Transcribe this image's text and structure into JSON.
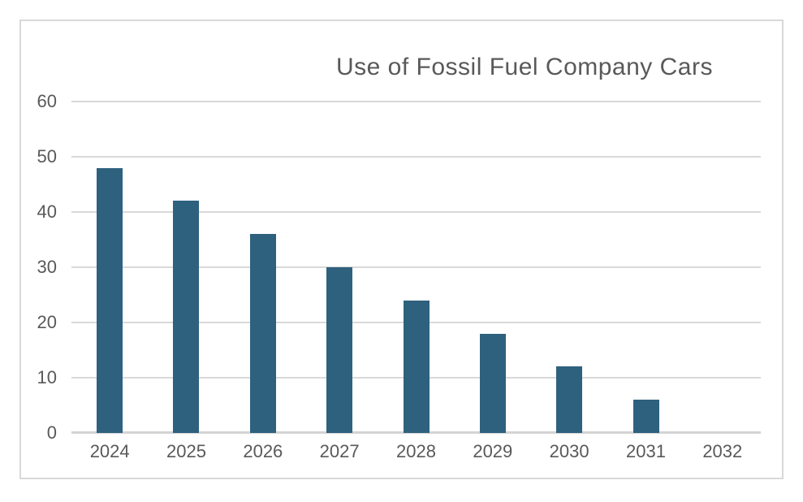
{
  "chart_data": {
    "type": "bar",
    "title": "Use of Fossil Fuel Company Cars",
    "categories": [
      "2024",
      "2025",
      "2026",
      "2027",
      "2028",
      "2029",
      "2030",
      "2031",
      "2032"
    ],
    "values": [
      48,
      42,
      36,
      30,
      24,
      18,
      12,
      6,
      0
    ],
    "xlabel": "",
    "ylabel": "",
    "ylim": [
      0,
      60
    ],
    "yticks": [
      0,
      10,
      20,
      30,
      40,
      50,
      60
    ],
    "grid": "horizontal",
    "legend": "none",
    "colors": {
      "bar": "#2E617E",
      "gridline": "#D9D9D9",
      "axis_line": "#D4D4D4",
      "text": "#595959",
      "chart_border": "#D9D9D9",
      "background": "#FFFFFF"
    }
  }
}
